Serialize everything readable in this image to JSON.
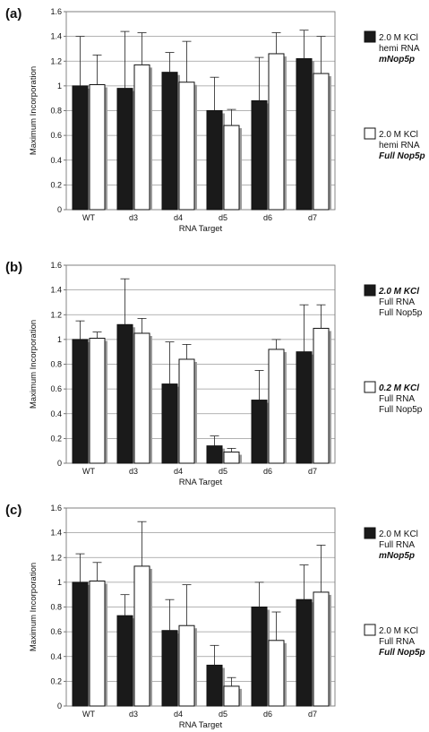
{
  "chart_data": [
    {
      "type": "bar",
      "panel_label": "(a)",
      "categories": [
        "WT",
        "d3",
        "d4",
        "d5",
        "d6",
        "d7"
      ],
      "series": [
        {
          "legend_lines": [
            "2.0 M KCl",
            "hemi RNA",
            "mNop5p"
          ],
          "legend_styles": [
            "normal",
            "normal",
            "bold-italic"
          ],
          "fill": "#1a1a1a",
          "values": [
            1.0,
            0.98,
            1.11,
            0.8,
            0.88,
            1.22
          ],
          "errors": [
            0.4,
            0.46,
            0.16,
            0.27,
            0.35,
            0.23
          ]
        },
        {
          "legend_lines": [
            "2.0 M KCl",
            "hemi RNA",
            "Full Nop5p"
          ],
          "legend_styles": [
            "normal",
            "normal",
            "bold-italic"
          ],
          "fill": "#ffffff",
          "values": [
            1.01,
            1.17,
            1.03,
            0.68,
            1.26,
            1.1
          ],
          "errors": [
            0.24,
            0.26,
            0.33,
            0.13,
            0.17,
            0.3
          ]
        }
      ],
      "xlabel": "RNA Target",
      "ylabel": "Maximum Incorporation",
      "ylim": [
        0,
        1.6
      ],
      "yticks": [
        "0",
        "0.2",
        "0.4",
        "0.6",
        "0.8",
        "1",
        "1.2",
        "1.4",
        "1.6"
      ],
      "grid": true,
      "legend_position": "right"
    },
    {
      "type": "bar",
      "panel_label": "(b)",
      "categories": [
        "WT",
        "d3",
        "d4",
        "d5",
        "d6",
        "d7"
      ],
      "series": [
        {
          "legend_lines": [
            "2.0 M KCl",
            "Full RNA",
            "Full Nop5p"
          ],
          "legend_styles": [
            "bold-italic",
            "normal",
            "normal"
          ],
          "fill": "#1a1a1a",
          "values": [
            1.0,
            1.12,
            0.64,
            0.14,
            0.51,
            0.9
          ],
          "errors": [
            0.15,
            0.37,
            0.34,
            0.08,
            0.24,
            0.38
          ]
        },
        {
          "legend_lines": [
            "0.2 M KCl",
            "Full RNA",
            "Full Nop5p"
          ],
          "legend_styles": [
            "bold-italic",
            "normal",
            "normal"
          ],
          "fill": "#ffffff",
          "values": [
            1.01,
            1.05,
            0.84,
            0.09,
            0.92,
            1.09
          ],
          "errors": [
            0.05,
            0.12,
            0.12,
            0.03,
            0.08,
            0.19
          ]
        }
      ],
      "xlabel": "RNA Target",
      "ylabel": "Maximum Incorporation",
      "ylim": [
        0,
        1.6
      ],
      "yticks": [
        "0",
        "0.2",
        "0.4",
        "0.6",
        "0.8",
        "1",
        "1.2",
        "1.4",
        "1.6"
      ],
      "grid": true,
      "legend_position": "right"
    },
    {
      "type": "bar",
      "panel_label": "(c)",
      "categories": [
        "WT",
        "d3",
        "d4",
        "d5",
        "d6",
        "d7"
      ],
      "series": [
        {
          "legend_lines": [
            "2.0 M KCl",
            "Full RNA",
            "mNop5p"
          ],
          "legend_styles": [
            "normal",
            "normal",
            "bold-italic"
          ],
          "fill": "#1a1a1a",
          "values": [
            1.0,
            0.73,
            0.61,
            0.33,
            0.8,
            0.86
          ],
          "errors": [
            0.23,
            0.17,
            0.25,
            0.16,
            0.2,
            0.28
          ]
        },
        {
          "legend_lines": [
            "2.0 M KCl",
            "Full RNA",
            "Full Nop5p"
          ],
          "legend_styles": [
            "normal",
            "normal",
            "bold-italic"
          ],
          "fill": "#ffffff",
          "values": [
            1.01,
            1.13,
            0.65,
            0.16,
            0.53,
            0.92
          ],
          "errors": [
            0.15,
            0.36,
            0.33,
            0.07,
            0.23,
            0.38
          ]
        }
      ],
      "xlabel": "RNA Target",
      "ylabel": "Maximum Incorporation",
      "ylim": [
        0,
        1.6
      ],
      "yticks": [
        "0",
        "0.2",
        "0.4",
        "0.6",
        "0.8",
        "1",
        "1.2",
        "1.4",
        "1.6"
      ],
      "grid": true,
      "legend_position": "right"
    }
  ]
}
